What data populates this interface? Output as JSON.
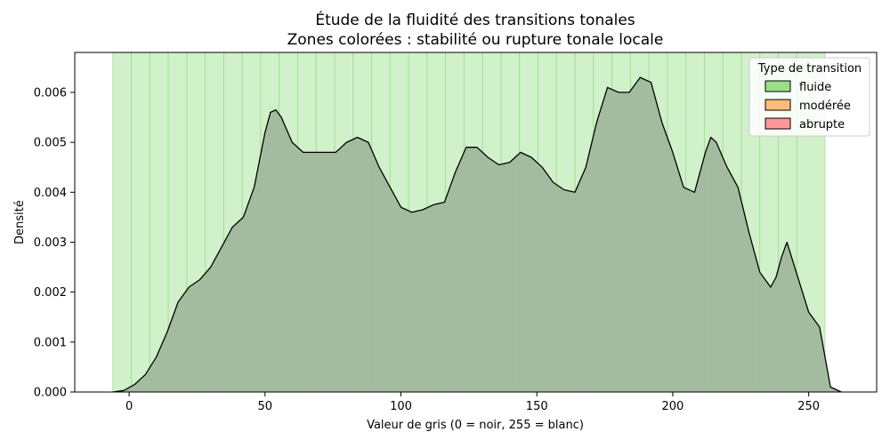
{
  "chart_data": {
    "type": "area",
    "title": "Étude de la fluidité des transitions tonales",
    "subtitle": "Zones colorées : stabilité ou rupture tonale locale",
    "xlabel": "Valeur de gris (0 = noir, 255 = blanc)",
    "ylabel": "Densité",
    "xlim": [
      -20,
      275
    ],
    "ylim": [
      0,
      0.0068
    ],
    "x_ticks": [
      0,
      50,
      100,
      150,
      200,
      250
    ],
    "x_tick_labels": [
      "0",
      "50",
      "100",
      "150",
      "200",
      "250"
    ],
    "y_ticks": [
      0,
      0.001,
      0.002,
      0.003,
      0.004,
      0.005,
      0.006
    ],
    "y_tick_labels": [
      "0.000",
      "0.001",
      "0.002",
      "0.003",
      "0.004",
      "0.005",
      "0.006"
    ],
    "grid": false,
    "legend": {
      "title": "Type de transition",
      "placement": "top-right",
      "entries": [
        {
          "label": "fluide",
          "color": "#98df8a"
        },
        {
          "label": "modérée",
          "color": "#ffbb78"
        },
        {
          "label": "abrupte",
          "color": "#ff9896"
        }
      ]
    },
    "zones": {
      "type": "fluide",
      "color": "#98df8a",
      "boundaries": [
        -6,
        0.8,
        7.6,
        14.4,
        21.2,
        28,
        34.8,
        41.6,
        48.4,
        55.2,
        62,
        68.8,
        75.6,
        82.4,
        89.2,
        96,
        102.8,
        109.6,
        116.4,
        123.2,
        130,
        136.8,
        143.6,
        150.4,
        157.2,
        164,
        170.8,
        177.6,
        184.4,
        191.2,
        198,
        204.8,
        211.6,
        218.4,
        225.2,
        232,
        238.8,
        245.6,
        256
      ]
    },
    "density": {
      "fill_color": "#a0b89c",
      "line_color": "#000000",
      "x": [
        -6,
        -2,
        2,
        6,
        10,
        14,
        18,
        22,
        26,
        30,
        34,
        38,
        42,
        46,
        50,
        52,
        54,
        56,
        60,
        64,
        70,
        76,
        80,
        84,
        88,
        92,
        96,
        100,
        104,
        108,
        112,
        116,
        120,
        124,
        128,
        132,
        136,
        140,
        144,
        148,
        152,
        156,
        160,
        164,
        168,
        172,
        176,
        180,
        184,
        188,
        192,
        196,
        200,
        204,
        208,
        212,
        214,
        216,
        220,
        224,
        228,
        232,
        236,
        238,
        240,
        242,
        246,
        250,
        254,
        258,
        262
      ],
      "y": [
        0,
        3e-05,
        0.00015,
        0.00035,
        0.0007,
        0.0012,
        0.0018,
        0.0021,
        0.00225,
        0.0025,
        0.0029,
        0.0033,
        0.0035,
        0.0041,
        0.0052,
        0.0056,
        0.00565,
        0.0055,
        0.005,
        0.0048,
        0.0048,
        0.0048,
        0.005,
        0.0051,
        0.005,
        0.0045,
        0.0041,
        0.0037,
        0.0036,
        0.00365,
        0.00375,
        0.0038,
        0.0044,
        0.0049,
        0.0049,
        0.0047,
        0.00455,
        0.0046,
        0.0048,
        0.0047,
        0.0045,
        0.0042,
        0.00405,
        0.004,
        0.0045,
        0.0054,
        0.0061,
        0.006,
        0.006,
        0.0063,
        0.0062,
        0.0054,
        0.0048,
        0.0041,
        0.004,
        0.0048,
        0.0051,
        0.005,
        0.0045,
        0.0041,
        0.0032,
        0.0024,
        0.0021,
        0.0023,
        0.0027,
        0.003,
        0.0023,
        0.0016,
        0.0013,
        0.0001,
        0
      ]
    }
  }
}
